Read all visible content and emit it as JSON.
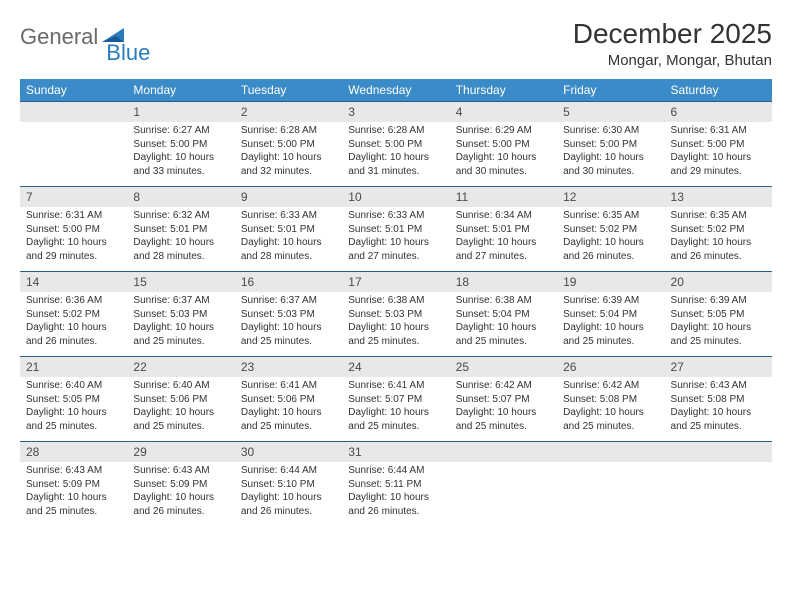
{
  "logo": {
    "part1": "General",
    "part2": "Blue"
  },
  "title": "December 2025",
  "location": "Mongar, Mongar, Bhutan",
  "colors": {
    "header_bg": "#3b8bc9",
    "header_text": "#ffffff",
    "daynum_bg": "#e8e8e8",
    "rule": "#2d5d8a",
    "logo_gray": "#6a6a6a",
    "logo_blue": "#2d7bbf"
  },
  "fonts": {
    "title_size": 28,
    "location_size": 15,
    "weekday_size": 12,
    "daynum_size": 12,
    "cell_size": 10
  },
  "weekdays": [
    "Sunday",
    "Monday",
    "Tuesday",
    "Wednesday",
    "Thursday",
    "Friday",
    "Saturday"
  ],
  "weeks": [
    [
      null,
      {
        "n": "1",
        "sunrise": "6:27 AM",
        "sunset": "5:00 PM",
        "daylight": "10 hours and 33 minutes."
      },
      {
        "n": "2",
        "sunrise": "6:28 AM",
        "sunset": "5:00 PM",
        "daylight": "10 hours and 32 minutes."
      },
      {
        "n": "3",
        "sunrise": "6:28 AM",
        "sunset": "5:00 PM",
        "daylight": "10 hours and 31 minutes."
      },
      {
        "n": "4",
        "sunrise": "6:29 AM",
        "sunset": "5:00 PM",
        "daylight": "10 hours and 30 minutes."
      },
      {
        "n": "5",
        "sunrise": "6:30 AM",
        "sunset": "5:00 PM",
        "daylight": "10 hours and 30 minutes."
      },
      {
        "n": "6",
        "sunrise": "6:31 AM",
        "sunset": "5:00 PM",
        "daylight": "10 hours and 29 minutes."
      }
    ],
    [
      {
        "n": "7",
        "sunrise": "6:31 AM",
        "sunset": "5:00 PM",
        "daylight": "10 hours and 29 minutes."
      },
      {
        "n": "8",
        "sunrise": "6:32 AM",
        "sunset": "5:01 PM",
        "daylight": "10 hours and 28 minutes."
      },
      {
        "n": "9",
        "sunrise": "6:33 AM",
        "sunset": "5:01 PM",
        "daylight": "10 hours and 28 minutes."
      },
      {
        "n": "10",
        "sunrise": "6:33 AM",
        "sunset": "5:01 PM",
        "daylight": "10 hours and 27 minutes."
      },
      {
        "n": "11",
        "sunrise": "6:34 AM",
        "sunset": "5:01 PM",
        "daylight": "10 hours and 27 minutes."
      },
      {
        "n": "12",
        "sunrise": "6:35 AM",
        "sunset": "5:02 PM",
        "daylight": "10 hours and 26 minutes."
      },
      {
        "n": "13",
        "sunrise": "6:35 AM",
        "sunset": "5:02 PM",
        "daylight": "10 hours and 26 minutes."
      }
    ],
    [
      {
        "n": "14",
        "sunrise": "6:36 AM",
        "sunset": "5:02 PM",
        "daylight": "10 hours and 26 minutes."
      },
      {
        "n": "15",
        "sunrise": "6:37 AM",
        "sunset": "5:03 PM",
        "daylight": "10 hours and 25 minutes."
      },
      {
        "n": "16",
        "sunrise": "6:37 AM",
        "sunset": "5:03 PM",
        "daylight": "10 hours and 25 minutes."
      },
      {
        "n": "17",
        "sunrise": "6:38 AM",
        "sunset": "5:03 PM",
        "daylight": "10 hours and 25 minutes."
      },
      {
        "n": "18",
        "sunrise": "6:38 AM",
        "sunset": "5:04 PM",
        "daylight": "10 hours and 25 minutes."
      },
      {
        "n": "19",
        "sunrise": "6:39 AM",
        "sunset": "5:04 PM",
        "daylight": "10 hours and 25 minutes."
      },
      {
        "n": "20",
        "sunrise": "6:39 AM",
        "sunset": "5:05 PM",
        "daylight": "10 hours and 25 minutes."
      }
    ],
    [
      {
        "n": "21",
        "sunrise": "6:40 AM",
        "sunset": "5:05 PM",
        "daylight": "10 hours and 25 minutes."
      },
      {
        "n": "22",
        "sunrise": "6:40 AM",
        "sunset": "5:06 PM",
        "daylight": "10 hours and 25 minutes."
      },
      {
        "n": "23",
        "sunrise": "6:41 AM",
        "sunset": "5:06 PM",
        "daylight": "10 hours and 25 minutes."
      },
      {
        "n": "24",
        "sunrise": "6:41 AM",
        "sunset": "5:07 PM",
        "daylight": "10 hours and 25 minutes."
      },
      {
        "n": "25",
        "sunrise": "6:42 AM",
        "sunset": "5:07 PM",
        "daylight": "10 hours and 25 minutes."
      },
      {
        "n": "26",
        "sunrise": "6:42 AM",
        "sunset": "5:08 PM",
        "daylight": "10 hours and 25 minutes."
      },
      {
        "n": "27",
        "sunrise": "6:43 AM",
        "sunset": "5:08 PM",
        "daylight": "10 hours and 25 minutes."
      }
    ],
    [
      {
        "n": "28",
        "sunrise": "6:43 AM",
        "sunset": "5:09 PM",
        "daylight": "10 hours and 25 minutes."
      },
      {
        "n": "29",
        "sunrise": "6:43 AM",
        "sunset": "5:09 PM",
        "daylight": "10 hours and 26 minutes."
      },
      {
        "n": "30",
        "sunrise": "6:44 AM",
        "sunset": "5:10 PM",
        "daylight": "10 hours and 26 minutes."
      },
      {
        "n": "31",
        "sunrise": "6:44 AM",
        "sunset": "5:11 PM",
        "daylight": "10 hours and 26 minutes."
      },
      null,
      null,
      null
    ]
  ],
  "labels": {
    "sunrise": "Sunrise:",
    "sunset": "Sunset:",
    "daylight": "Daylight:"
  }
}
